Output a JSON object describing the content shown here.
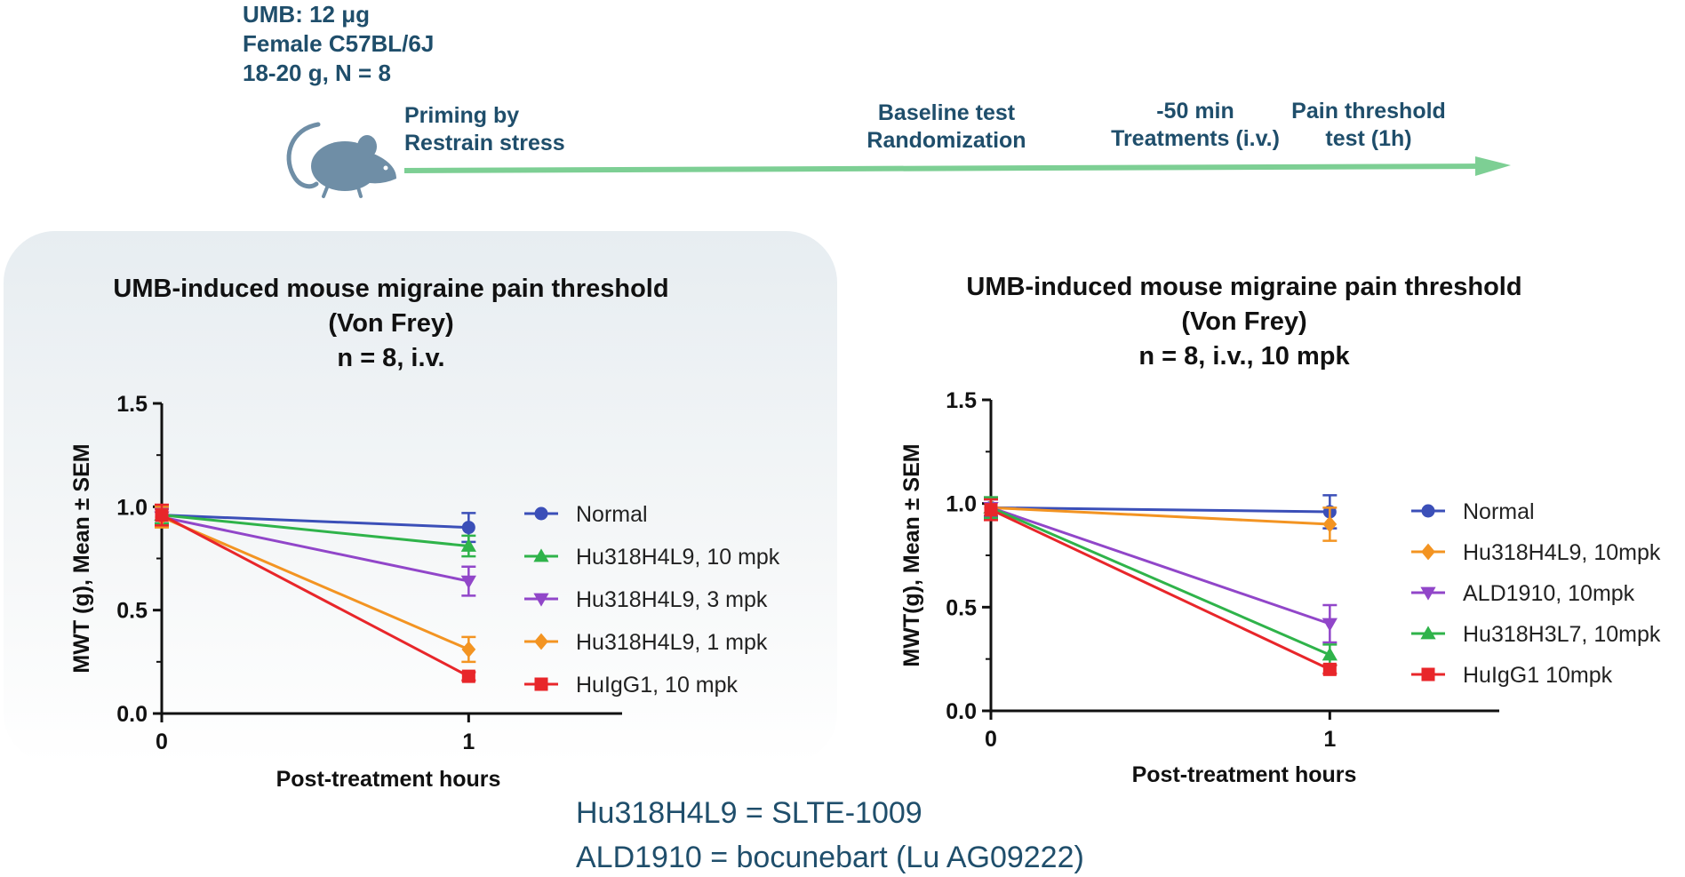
{
  "protocol": {
    "lines": [
      "UMB:  12 μg",
      "Female C57BL/6J",
      "18-20 g, N = 8"
    ]
  },
  "timeline": {
    "steps": [
      {
        "lines": [
          "Priming by",
          "Restrain stress"
        ]
      },
      {
        "lines": [
          "Baseline test",
          "Randomization"
        ]
      },
      {
        "lines": [
          "-50 min",
          "Treatments (i.v.)"
        ]
      },
      {
        "lines": [
          "Pain threshold",
          "test (1h)"
        ]
      }
    ],
    "colors": {
      "arrow": "#7dcf94",
      "mouse": "#6f8ea6"
    }
  },
  "notes": [
    "Hu318H4L9 = SLTE-1009",
    "ALD1910 = bocunebart (Lu AG09222)"
  ],
  "chart_data": [
    {
      "type": "line",
      "title_lines": [
        "UMB-induced mouse migraine pain threshold",
        "(Von Frey)",
        "n = 8, i.v."
      ],
      "xlabel": "Post-treatment hours",
      "ylabel": "MWT (g), Mean ± SEM",
      "x": [
        0,
        1
      ],
      "xticks": [
        "0",
        "1"
      ],
      "xlim": [
        0,
        1.5
      ],
      "ylim": [
        0,
        1.5
      ],
      "yticks": [
        "0.0",
        "0.5",
        "1.0",
        "1.5"
      ],
      "legend_position": "right",
      "series": [
        {
          "name": "Normal",
          "values": [
            0.96,
            0.9
          ],
          "sem": [
            0.04,
            0.07
          ],
          "color": "#3b4fb8",
          "marker": "circle"
        },
        {
          "name": "Hu318H4L9, 10 mpk",
          "values": [
            0.96,
            0.81
          ],
          "sem": [
            0.04,
            0.05
          ],
          "color": "#2fb34a",
          "marker": "triangle-up"
        },
        {
          "name": "Hu318H4L9, 3 mpk",
          "values": [
            0.95,
            0.64
          ],
          "sem": [
            0.04,
            0.07
          ],
          "color": "#9146c9",
          "marker": "triangle-down"
        },
        {
          "name": "Hu318H4L9, 1 mpk",
          "values": [
            0.95,
            0.31
          ],
          "sem": [
            0.05,
            0.06
          ],
          "color": "#f39422",
          "marker": "diamond"
        },
        {
          "name": "HuIgG1, 10 mpk",
          "values": [
            0.96,
            0.18
          ],
          "sem": [
            0.05,
            0.02
          ],
          "color": "#e8262a",
          "marker": "square"
        }
      ]
    },
    {
      "type": "line",
      "title_lines": [
        "UMB-induced mouse migraine  pain threshold",
        "(Von Frey)",
        "n = 8, i.v., 10 mpk"
      ],
      "xlabel": "Post-treatment  hours",
      "ylabel": "MWT(g), Mean ± SEM",
      "x": [
        0,
        1
      ],
      "xticks": [
        "0",
        "1"
      ],
      "xlim": [
        0,
        1.5
      ],
      "ylim": [
        0,
        1.5
      ],
      "yticks": [
        "0.0",
        "0.5",
        "1.0",
        "1.5"
      ],
      "legend_position": "right",
      "series": [
        {
          "name": "Normal",
          "values": [
            0.98,
            0.96
          ],
          "sem": [
            0.04,
            0.08
          ],
          "color": "#3b4fb8",
          "marker": "circle"
        },
        {
          "name": "Hu318H4L9, 10mpk",
          "values": [
            0.98,
            0.9
          ],
          "sem": [
            0.05,
            0.08
          ],
          "color": "#f39422",
          "marker": "diamond"
        },
        {
          "name": "ALD1910, 10mpk",
          "values": [
            0.98,
            0.42
          ],
          "sem": [
            0.05,
            0.09
          ],
          "color": "#9146c9",
          "marker": "triangle-down"
        },
        {
          "name": "Hu318H3L7, 10mpk",
          "values": [
            0.98,
            0.27
          ],
          "sem": [
            0.05,
            0.05
          ],
          "color": "#2fb34a",
          "marker": "triangle-up"
        },
        {
          "name": "HuIgG1 10mpk",
          "values": [
            0.97,
            0.2
          ],
          "sem": [
            0.05,
            0.02
          ],
          "color": "#e8262a",
          "marker": "square"
        }
      ]
    }
  ]
}
